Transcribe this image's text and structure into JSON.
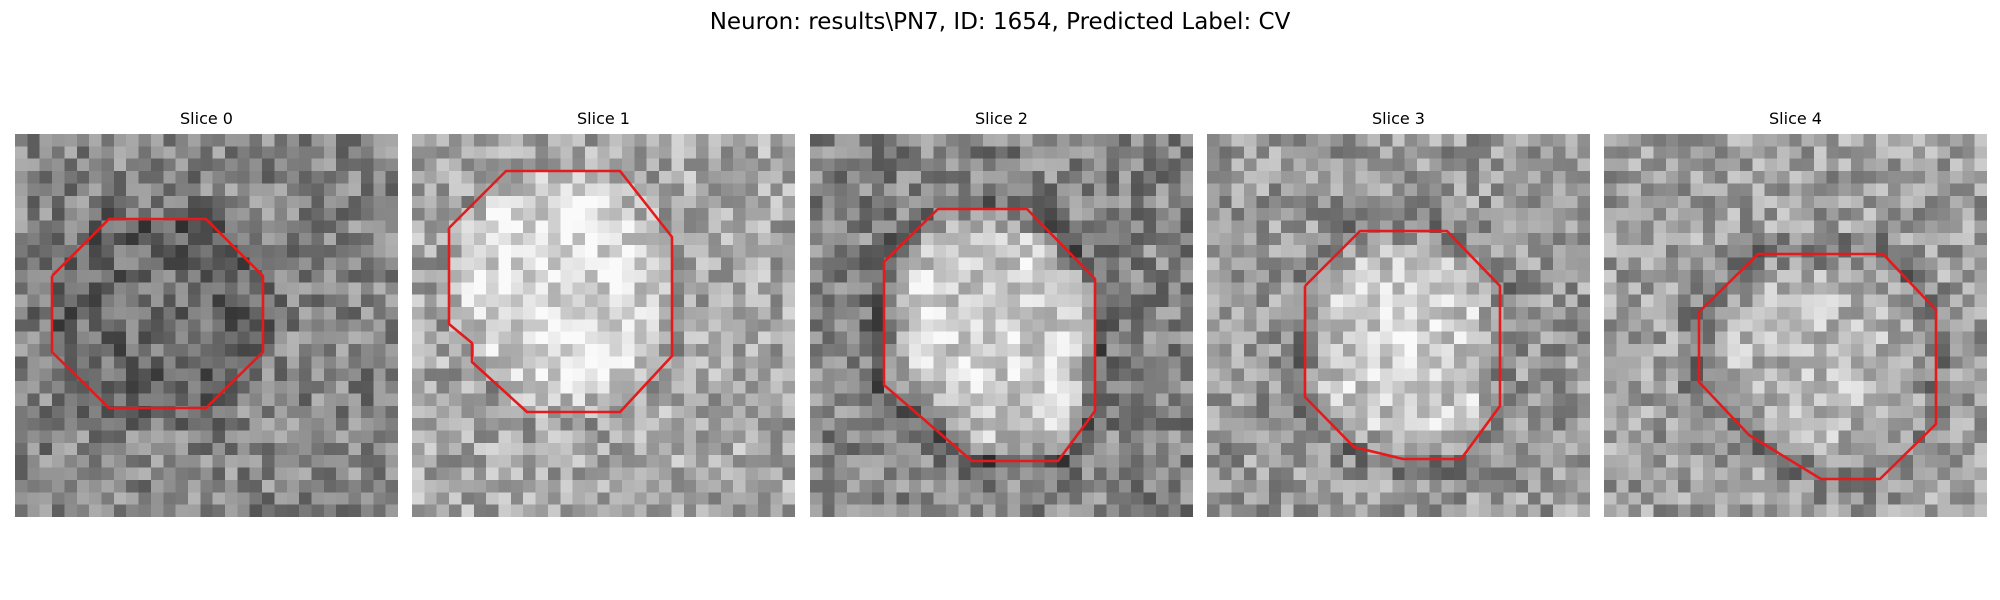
{
  "figure": {
    "title": "Neuron: results\\PN7, ID: 1654, Predicted Label: CV"
  },
  "outline_color": "#e41a1c",
  "colormap": "gray",
  "slices": [
    {
      "title": "Slice 0",
      "seed": 11,
      "interior": 0.36,
      "surround": 0.52,
      "ring": 0.3
    },
    {
      "title": "Slice 1",
      "seed": 23,
      "interior": 0.8,
      "surround": 0.66,
      "ring": 0.55
    },
    {
      "title": "Slice 2",
      "seed": 37,
      "interior": 0.76,
      "surround": 0.52,
      "ring": 0.18
    },
    {
      "title": "Slice 3",
      "seed": 41,
      "interior": 0.74,
      "surround": 0.6,
      "ring": 0.3
    },
    {
      "title": "Slice 4",
      "seed": 53,
      "interior": 0.66,
      "surround": 0.62,
      "ring": 0.3
    }
  ]
}
